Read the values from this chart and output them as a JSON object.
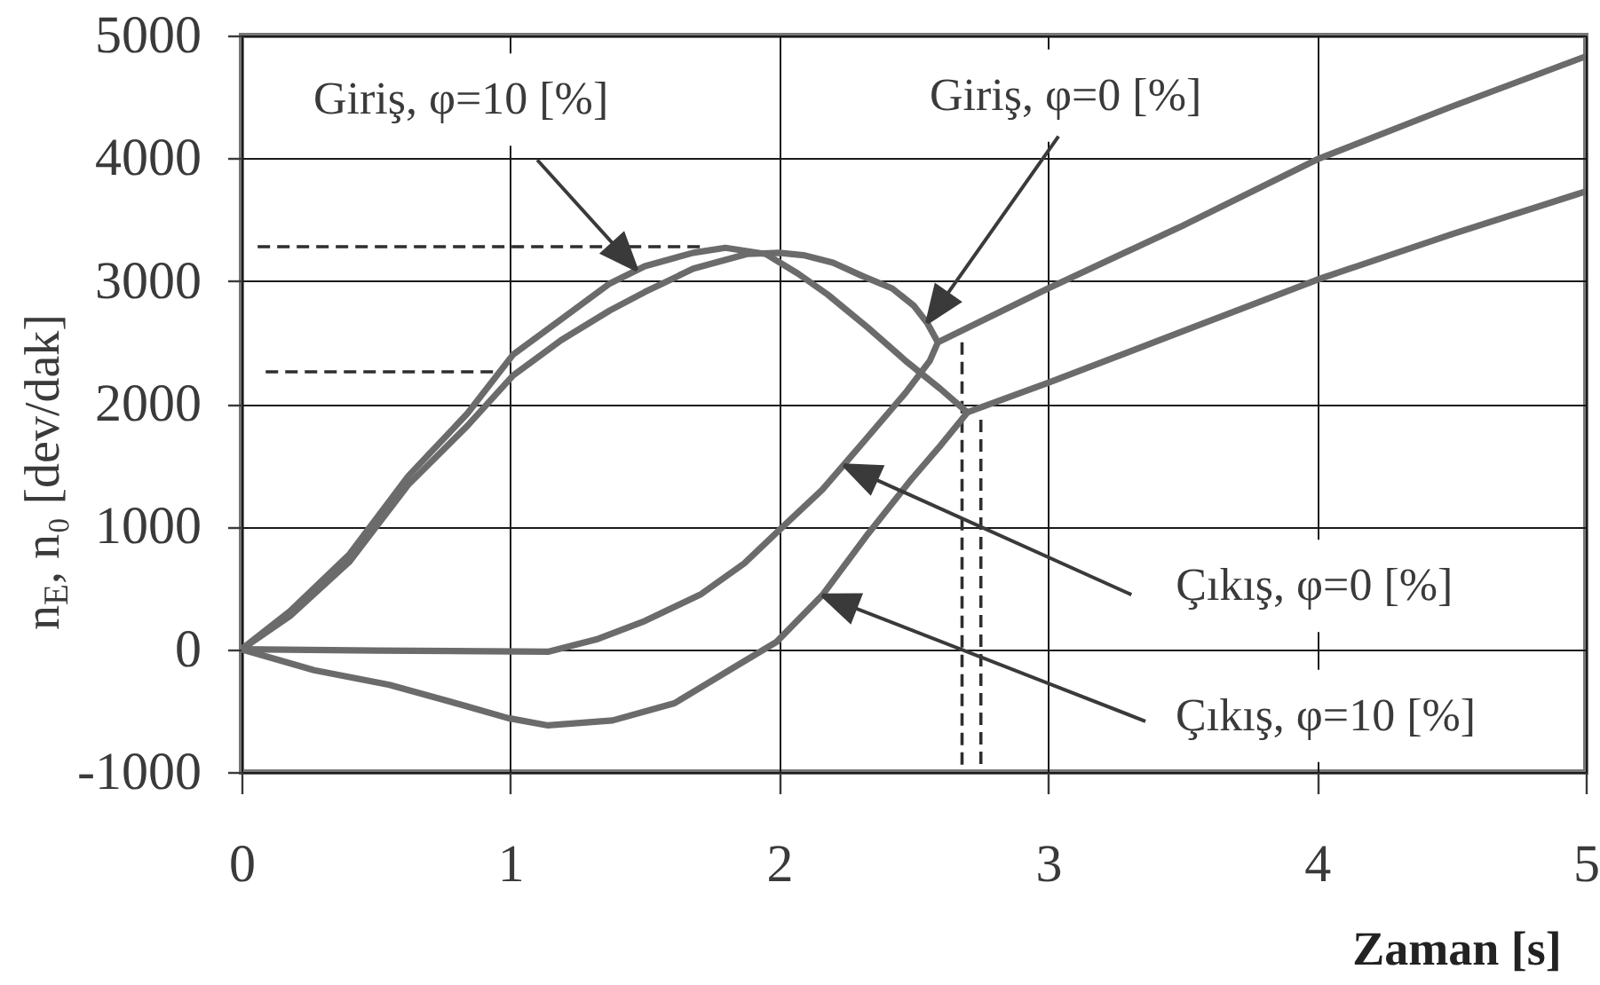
{
  "chart_data": {
    "type": "line",
    "xlabel": "Zaman [s]",
    "ylabel": "n$_{E}$, n₀ [dev/dak]",
    "xlim": [
      0,
      5
    ],
    "ylim": [
      -1000,
      5000
    ],
    "xticks": [
      0,
      1,
      2,
      3,
      4,
      5
    ],
    "yticks": [
      -1000,
      0,
      1000,
      2000,
      3000,
      4000,
      5000
    ],
    "grid": true,
    "series": [
      {
        "color": "#2e2e2e",
        "line_style": "dashed",
        "x": [
          0.06,
          1.72
        ],
        "values": [
          3280,
          3280
        ]
      },
      {
        "color": "#2e2e2e",
        "line_style": "dashed",
        "x": [
          0.09,
          0.94
        ],
        "values": [
          2260,
          2260
        ]
      },
      {
        "color": "#2e2e2e",
        "line_style": "dashed",
        "x": [
          2.68,
          2.68
        ],
        "values": [
          2500,
          -980
        ]
      },
      {
        "color": "#2e2e2e",
        "line_style": "dashed",
        "x": [
          2.75,
          2.75
        ],
        "values": [
          1870,
          -980
        ]
      },
      {
        "color": "#6b6b6b",
        "x": [
          0,
          0.18,
          0.4,
          0.62,
          0.84,
          1.01,
          1.19,
          1.37,
          1.5,
          1.68,
          1.88,
          2.0,
          2.09,
          2.2,
          2.31,
          2.42,
          2.5,
          2.55,
          2.59,
          3.0,
          3.5,
          4.0,
          4.5,
          5.0
        ],
        "values": [
          0,
          270,
          710,
          1340,
          1820,
          2230,
          2520,
          2760,
          2910,
          3100,
          3220,
          3230,
          3210,
          3150,
          3040,
          2940,
          2800,
          2660,
          2500,
          2940,
          3450,
          3990,
          4420,
          4830
        ]
      },
      {
        "color": "#6b6b6b",
        "x": [
          0,
          0.18,
          0.4,
          0.62,
          0.84,
          1.01,
          1.19,
          1.37,
          1.5,
          1.68,
          1.8,
          1.95,
          2.07,
          2.18,
          2.33,
          2.47,
          2.6,
          2.7,
          3.0,
          3.5,
          4.0,
          4.5,
          5.0
        ],
        "values": [
          0,
          310,
          770,
          1410,
          1920,
          2400,
          2690,
          2980,
          3120,
          3230,
          3270,
          3220,
          3060,
          2890,
          2620,
          2350,
          2120,
          1930,
          2170,
          2590,
          3010,
          3380,
          3730
        ]
      },
      {
        "color": "#6b6b6b",
        "x": [
          0,
          0.5,
          1.14,
          1.32,
          1.5,
          1.71,
          1.87,
          2.0,
          2.16,
          2.31,
          2.47,
          2.56,
          2.59
        ],
        "values": [
          0,
          -10,
          -20,
          80,
          230,
          450,
          700,
          970,
          1300,
          1680,
          2090,
          2350,
          2500
        ]
      },
      {
        "color": "#6b6b6b",
        "x": [
          0,
          0.27,
          0.55,
          0.83,
          0.99,
          1.14,
          1.38,
          1.61,
          1.83,
          1.99,
          2.16,
          2.33,
          2.49,
          2.6,
          2.7
        ],
        "values": [
          0,
          -170,
          -290,
          -460,
          -560,
          -620,
          -580,
          -440,
          -150,
          60,
          440,
          940,
          1380,
          1660,
          1930
        ]
      }
    ],
    "annotations": [
      {
        "text": "Giriş, φ=10 [%]",
        "x": 1.47,
        "y": 3090
      },
      {
        "text": "Giriş, φ=0 [%]",
        "x": 2.55,
        "y": 2660
      },
      {
        "text": "Çıkış, φ=0 [%]",
        "x": 2.24,
        "y": 1500
      },
      {
        "text": "Çıkış, φ=10 [%]",
        "x": 2.16,
        "y": 440
      }
    ]
  }
}
